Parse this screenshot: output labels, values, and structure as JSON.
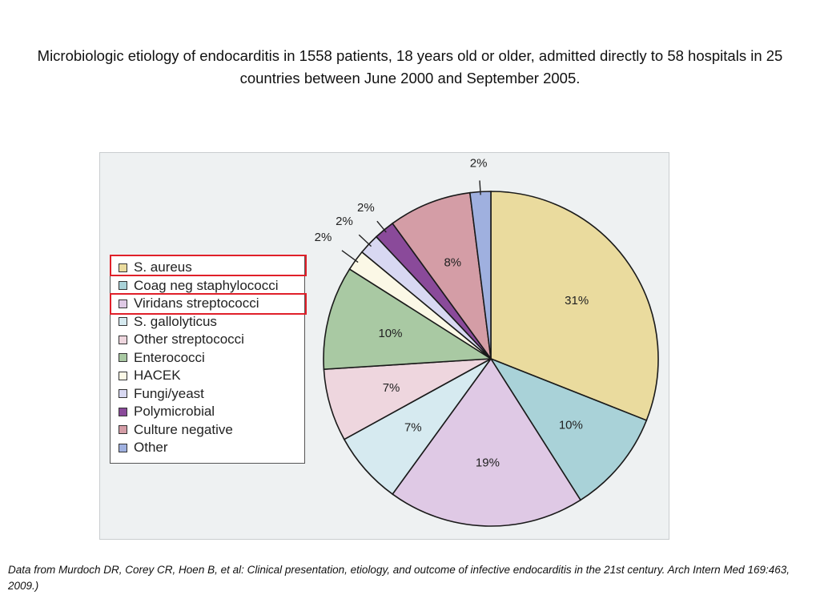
{
  "slide": {
    "title": "Microbiologic etiology of endocarditis in 1558 patients, 18 years old or older, admitted directly to 58 hospitals in 25 countries between June 2000 and September 2005.",
    "source": "Data from Murdoch DR, Corey CR, Hoen B, et al: Clinical presentation, etiology, and outcome of infective endocarditis in the 21st century. Arch Intern Med 169:463, 2009.)"
  },
  "chart_data": {
    "type": "pie",
    "title": "",
    "categories": [
      "S. aureus",
      "Coag neg staphylococci",
      "Viridans streptococci",
      "S. gallolyticus",
      "Other streptococci",
      "Enterococci",
      "HACEK",
      "Fungi/yeast",
      "Polymicrobial",
      "Culture negative",
      "Other"
    ],
    "values": [
      31,
      10,
      19,
      7,
      7,
      10,
      2,
      2,
      2,
      8,
      2
    ],
    "labels": [
      "31%",
      "10%",
      "19%",
      "7%",
      "7%",
      "10%",
      "2%",
      "2%",
      "2%",
      "8%",
      "2%"
    ],
    "colors": [
      "#eadb9e",
      "#a9d2d8",
      "#dfc9e5",
      "#d6eaf0",
      "#eed6de",
      "#a9c9a3",
      "#fbf8e6",
      "#d8d8f2",
      "#8a4a9a",
      "#d49da6",
      "#9fb0df"
    ],
    "start_angle_deg": 0,
    "direction": "clockwise",
    "legend_position": "left",
    "highlighted_legend_entries": [
      "S. aureus",
      "Viridans streptococci"
    ]
  }
}
